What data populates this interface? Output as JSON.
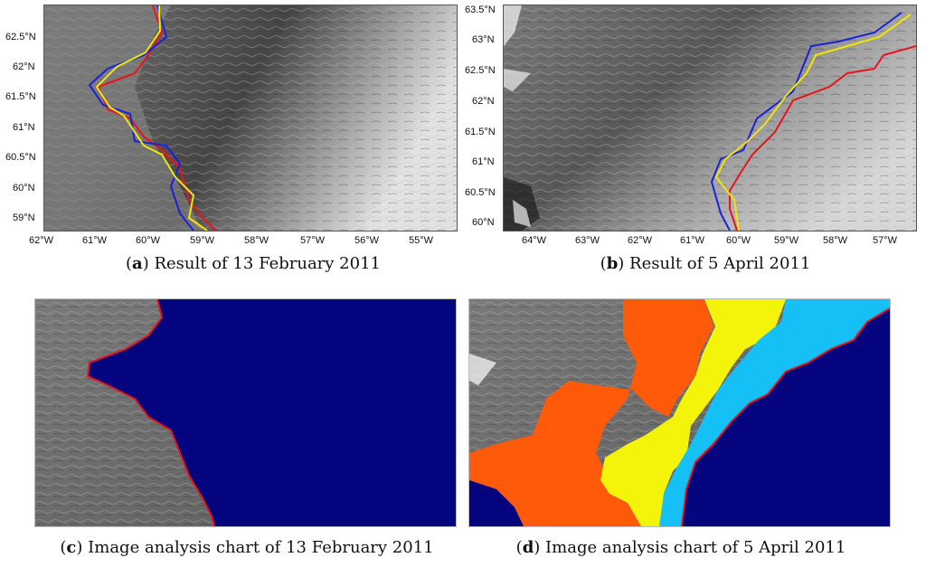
{
  "figure": {
    "panels": [
      {
        "id": "a",
        "letter": "a",
        "caption": "Result of 13 February 2011",
        "y_ticks": [
          "62.5°N",
          "62°N",
          "61.5°N",
          "61°N",
          "60.5°N",
          "60°N",
          "59°N"
        ],
        "x_ticks": [
          "62°W",
          "61°W",
          "60°W",
          "59°W",
          "58°W",
          "57°W",
          "56°W",
          "55°W"
        ]
      },
      {
        "id": "b",
        "letter": "b",
        "caption": "Result of 5 April 2011",
        "y_ticks": [
          "63.5°N",
          "63°N",
          "62.5°N",
          "62°N",
          "61.5°N",
          "61°N",
          "60.5°N",
          "60°N"
        ],
        "x_ticks": [
          "64°W",
          "63°W",
          "62°W",
          "61°W",
          "60°W",
          "59°W",
          "58°W",
          "57°W"
        ]
      },
      {
        "id": "c",
        "letter": "c",
        "caption": "Image analysis chart of 13 February 2011"
      },
      {
        "id": "d",
        "letter": "d",
        "caption": "Image analysis chart of 5 April 2011"
      }
    ],
    "colors": {
      "ice_edge_red": "#e8141c",
      "ice_edge_blue": "#1a22d6",
      "ice_edge_yellow": "#f0e60a",
      "open_water_navy": "#04047f",
      "ice_orange": "#ff5a0a",
      "ice_yellow": "#f4f40a",
      "ice_lightblue": "#14c0f5"
    }
  }
}
